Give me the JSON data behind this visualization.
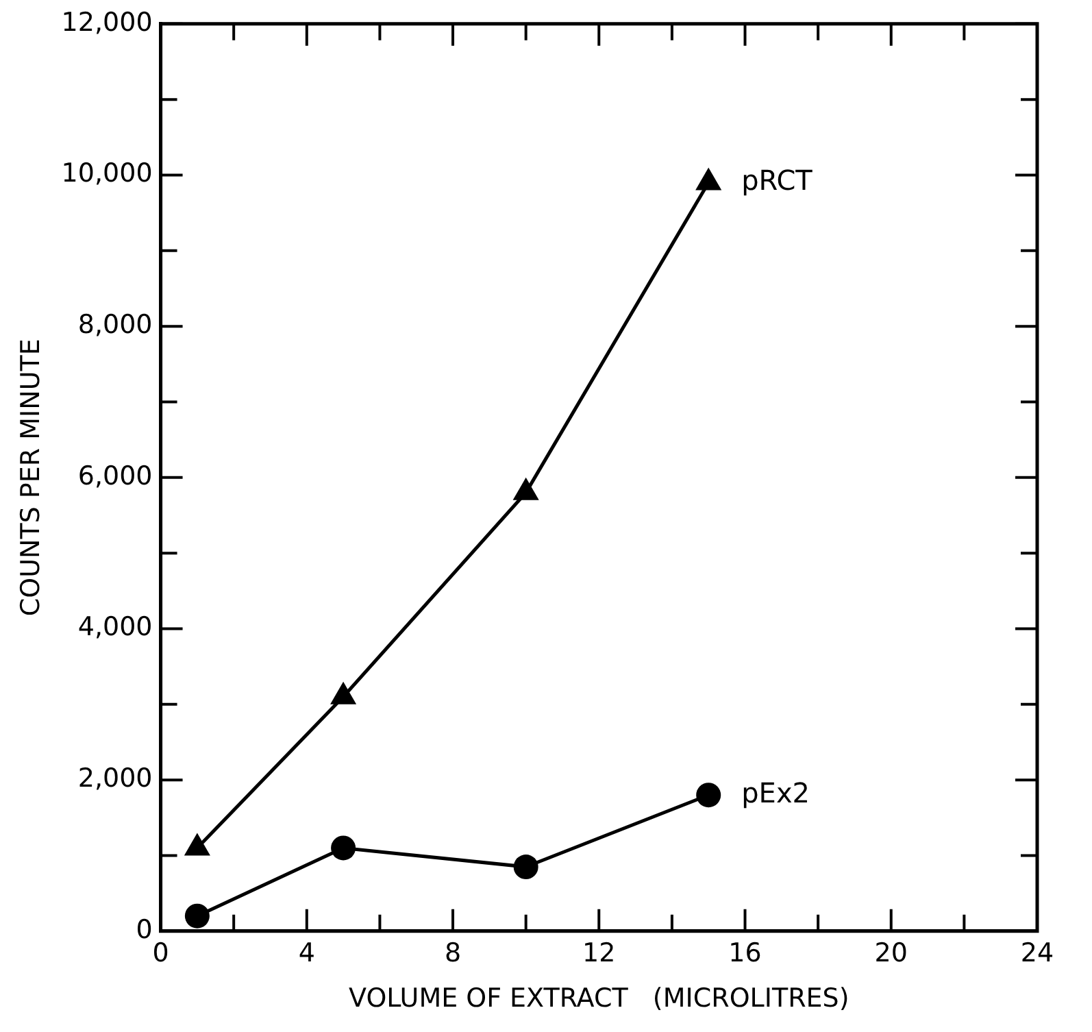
{
  "chart_data": {
    "type": "line",
    "xlabel": "VOLUME OF EXTRACT   (MICROLITRES)",
    "ylabel": "COUNTS PER MINUTE",
    "x": [
      1,
      5,
      10,
      15
    ],
    "series": [
      {
        "name": "pRCT",
        "color": "#000000",
        "marker": "triangle",
        "values": [
          1100,
          3100,
          5800,
          9900
        ]
      },
      {
        "name": "pEx2",
        "color": "#000000",
        "marker": "circle",
        "values": [
          200,
          1100,
          850,
          1800
        ]
      }
    ],
    "xlim": [
      0,
      24
    ],
    "xticks": [
      0,
      {
        "value": 2,
        "label": null
      },
      4,
      {
        "value": 6,
        "label": null
      },
      8,
      {
        "value": 10,
        "label": null
      },
      12,
      {
        "value": 14,
        "label": null
      },
      16,
      {
        "value": 18,
        "label": null
      },
      20,
      {
        "value": 22,
        "label": null
      },
      24
    ],
    "ylim": [
      0,
      12000
    ],
    "yticks": [
      {
        "value": 0,
        "label": "0"
      },
      {
        "value": 1000,
        "label": null
      },
      {
        "value": 2000,
        "label": "2,000"
      },
      {
        "value": 3000,
        "label": null
      },
      {
        "value": 4000,
        "label": "4,000"
      },
      {
        "value": 5000,
        "label": null
      },
      {
        "value": 6000,
        "label": "6,000"
      },
      {
        "value": 7000,
        "label": null
      },
      {
        "value": 8000,
        "label": "8,000"
      },
      {
        "value": 9000,
        "label": null
      },
      {
        "value": 10000,
        "label": "10,000"
      },
      {
        "value": 11000,
        "label": null
      },
      {
        "value": 12000,
        "label": "12,000"
      }
    ],
    "grid": false,
    "legend": false,
    "line_style": "solid"
  }
}
